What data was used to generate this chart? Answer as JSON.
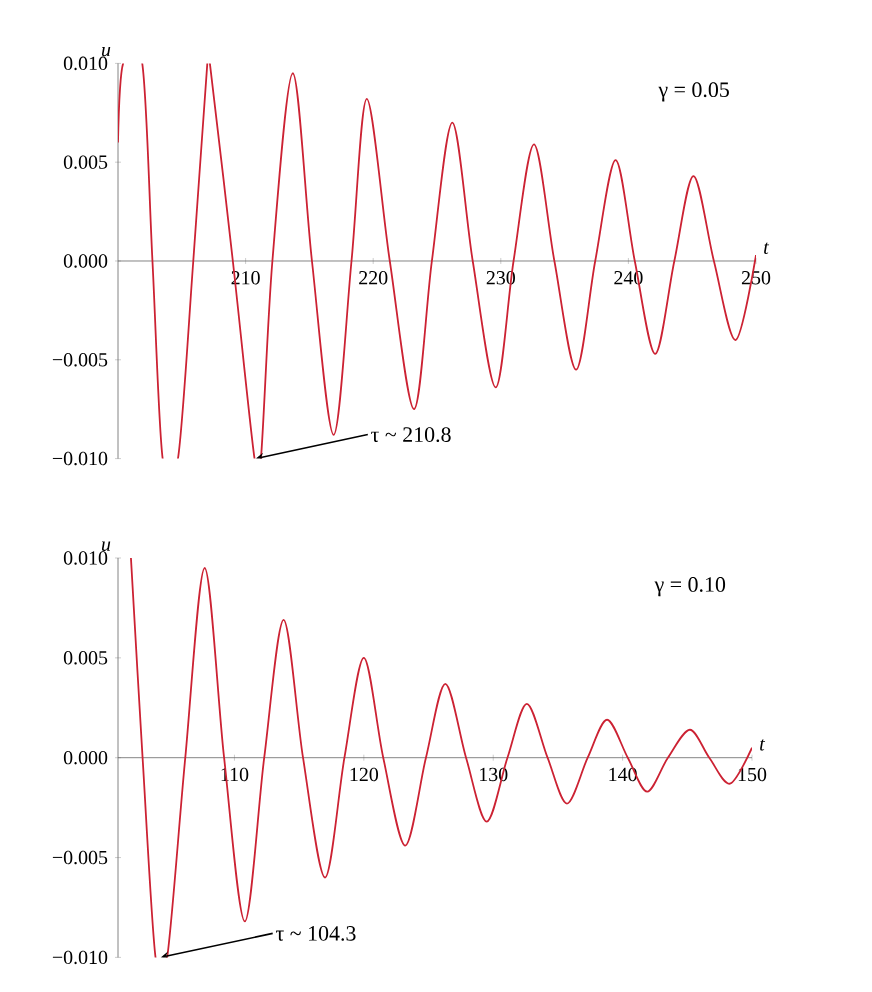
{
  "chart_data": [
    {
      "type": "line",
      "xlabel": "t",
      "ylabel": "u",
      "xlim": [
        200,
        250
      ],
      "ylim": [
        -0.01,
        0.01
      ],
      "xticks": [
        210,
        220,
        230,
        240,
        250
      ],
      "yticks": [
        {
          "value": -0.01,
          "label": "−0.010"
        },
        {
          "value": -0.005,
          "label": "−0.005"
        },
        {
          "value": 0,
          "label": "0.000"
        },
        {
          "value": 0.005,
          "label": "0.005"
        },
        {
          "value": 0.01,
          "label": "0.010"
        }
      ],
      "annotations": [
        "γ = 0.05",
        {
          "text": "τ ~ 210.8",
          "x": 210.8,
          "y": -0.01
        }
      ],
      "x": [
        200,
        200.4,
        201.9,
        202.7,
        203.5,
        204.7,
        205.9,
        207.0,
        207.2,
        209.0,
        210.7,
        211.2,
        212.1,
        213.7,
        215.2,
        216.9,
        218.3,
        219.5,
        221.3,
        223.2,
        224.6,
        226.2,
        227.8,
        229.6,
        231.0,
        232.6,
        234.2,
        235.9,
        237.4,
        239.0,
        240.5,
        242.1,
        243.6,
        245.1,
        246.7,
        248.4,
        250
      ],
      "series": [
        {
          "color": "#cc2233",
          "values": [
            0.006,
            0.01,
            0.01,
            0,
            -0.01,
            -0.01,
            0,
            0.01,
            0.01,
            0,
            -0.01,
            -0.01,
            0,
            0.0095,
            0,
            -0.0088,
            0,
            0.0082,
            0,
            -0.0075,
            0,
            0.007,
            0,
            -0.0064,
            0,
            0.0059,
            0,
            -0.0055,
            0,
            0.0051,
            0,
            -0.0047,
            0,
            0.0043,
            0,
            -0.004,
            0.0003
          ]
        }
      ]
    },
    {
      "type": "line",
      "xlabel": "t",
      "ylabel": "u",
      "xlim": [
        101,
        150
      ],
      "ylim": [
        -0.01,
        0.01
      ],
      "xticks": [
        110,
        120,
        130,
        140,
        150
      ],
      "yticks": [
        {
          "value": -0.01,
          "label": "−0.010"
        },
        {
          "value": -0.005,
          "label": "−0.005"
        },
        {
          "value": 0,
          "label": "0.000"
        },
        {
          "value": 0.005,
          "label": "0.005"
        },
        {
          "value": 0.01,
          "label": "0.010"
        }
      ],
      "annotations": [
        "γ = 0.10",
        {
          "text": "τ ~ 104.3",
          "x": 104.3,
          "y": -0.01
        }
      ],
      "x": [
        102.0,
        102.9,
        103.9,
        104.8,
        106.2,
        107.7,
        109.2,
        110.8,
        112.3,
        113.8,
        115.3,
        117.0,
        118.5,
        120.0,
        121.5,
        123.2,
        124.8,
        126.3,
        127.9,
        129.5,
        131.1,
        132.6,
        134.2,
        135.7,
        137.3,
        138.8,
        140.4,
        141.9,
        143.5,
        145.2,
        146.7,
        148.3,
        150
      ],
      "series": [
        {
          "color": "#cc2233",
          "values": [
            0.01,
            0,
            -0.01,
            -0.01,
            0,
            0.0095,
            0,
            -0.0082,
            0,
            0.0069,
            0,
            -0.006,
            0,
            0.005,
            0,
            -0.0044,
            0,
            0.0037,
            0,
            -0.0032,
            0,
            0.0027,
            0,
            -0.0023,
            0,
            0.0019,
            0,
            -0.0017,
            0,
            0.0014,
            0,
            -0.0013,
            0.0005
          ]
        }
      ]
    }
  ]
}
